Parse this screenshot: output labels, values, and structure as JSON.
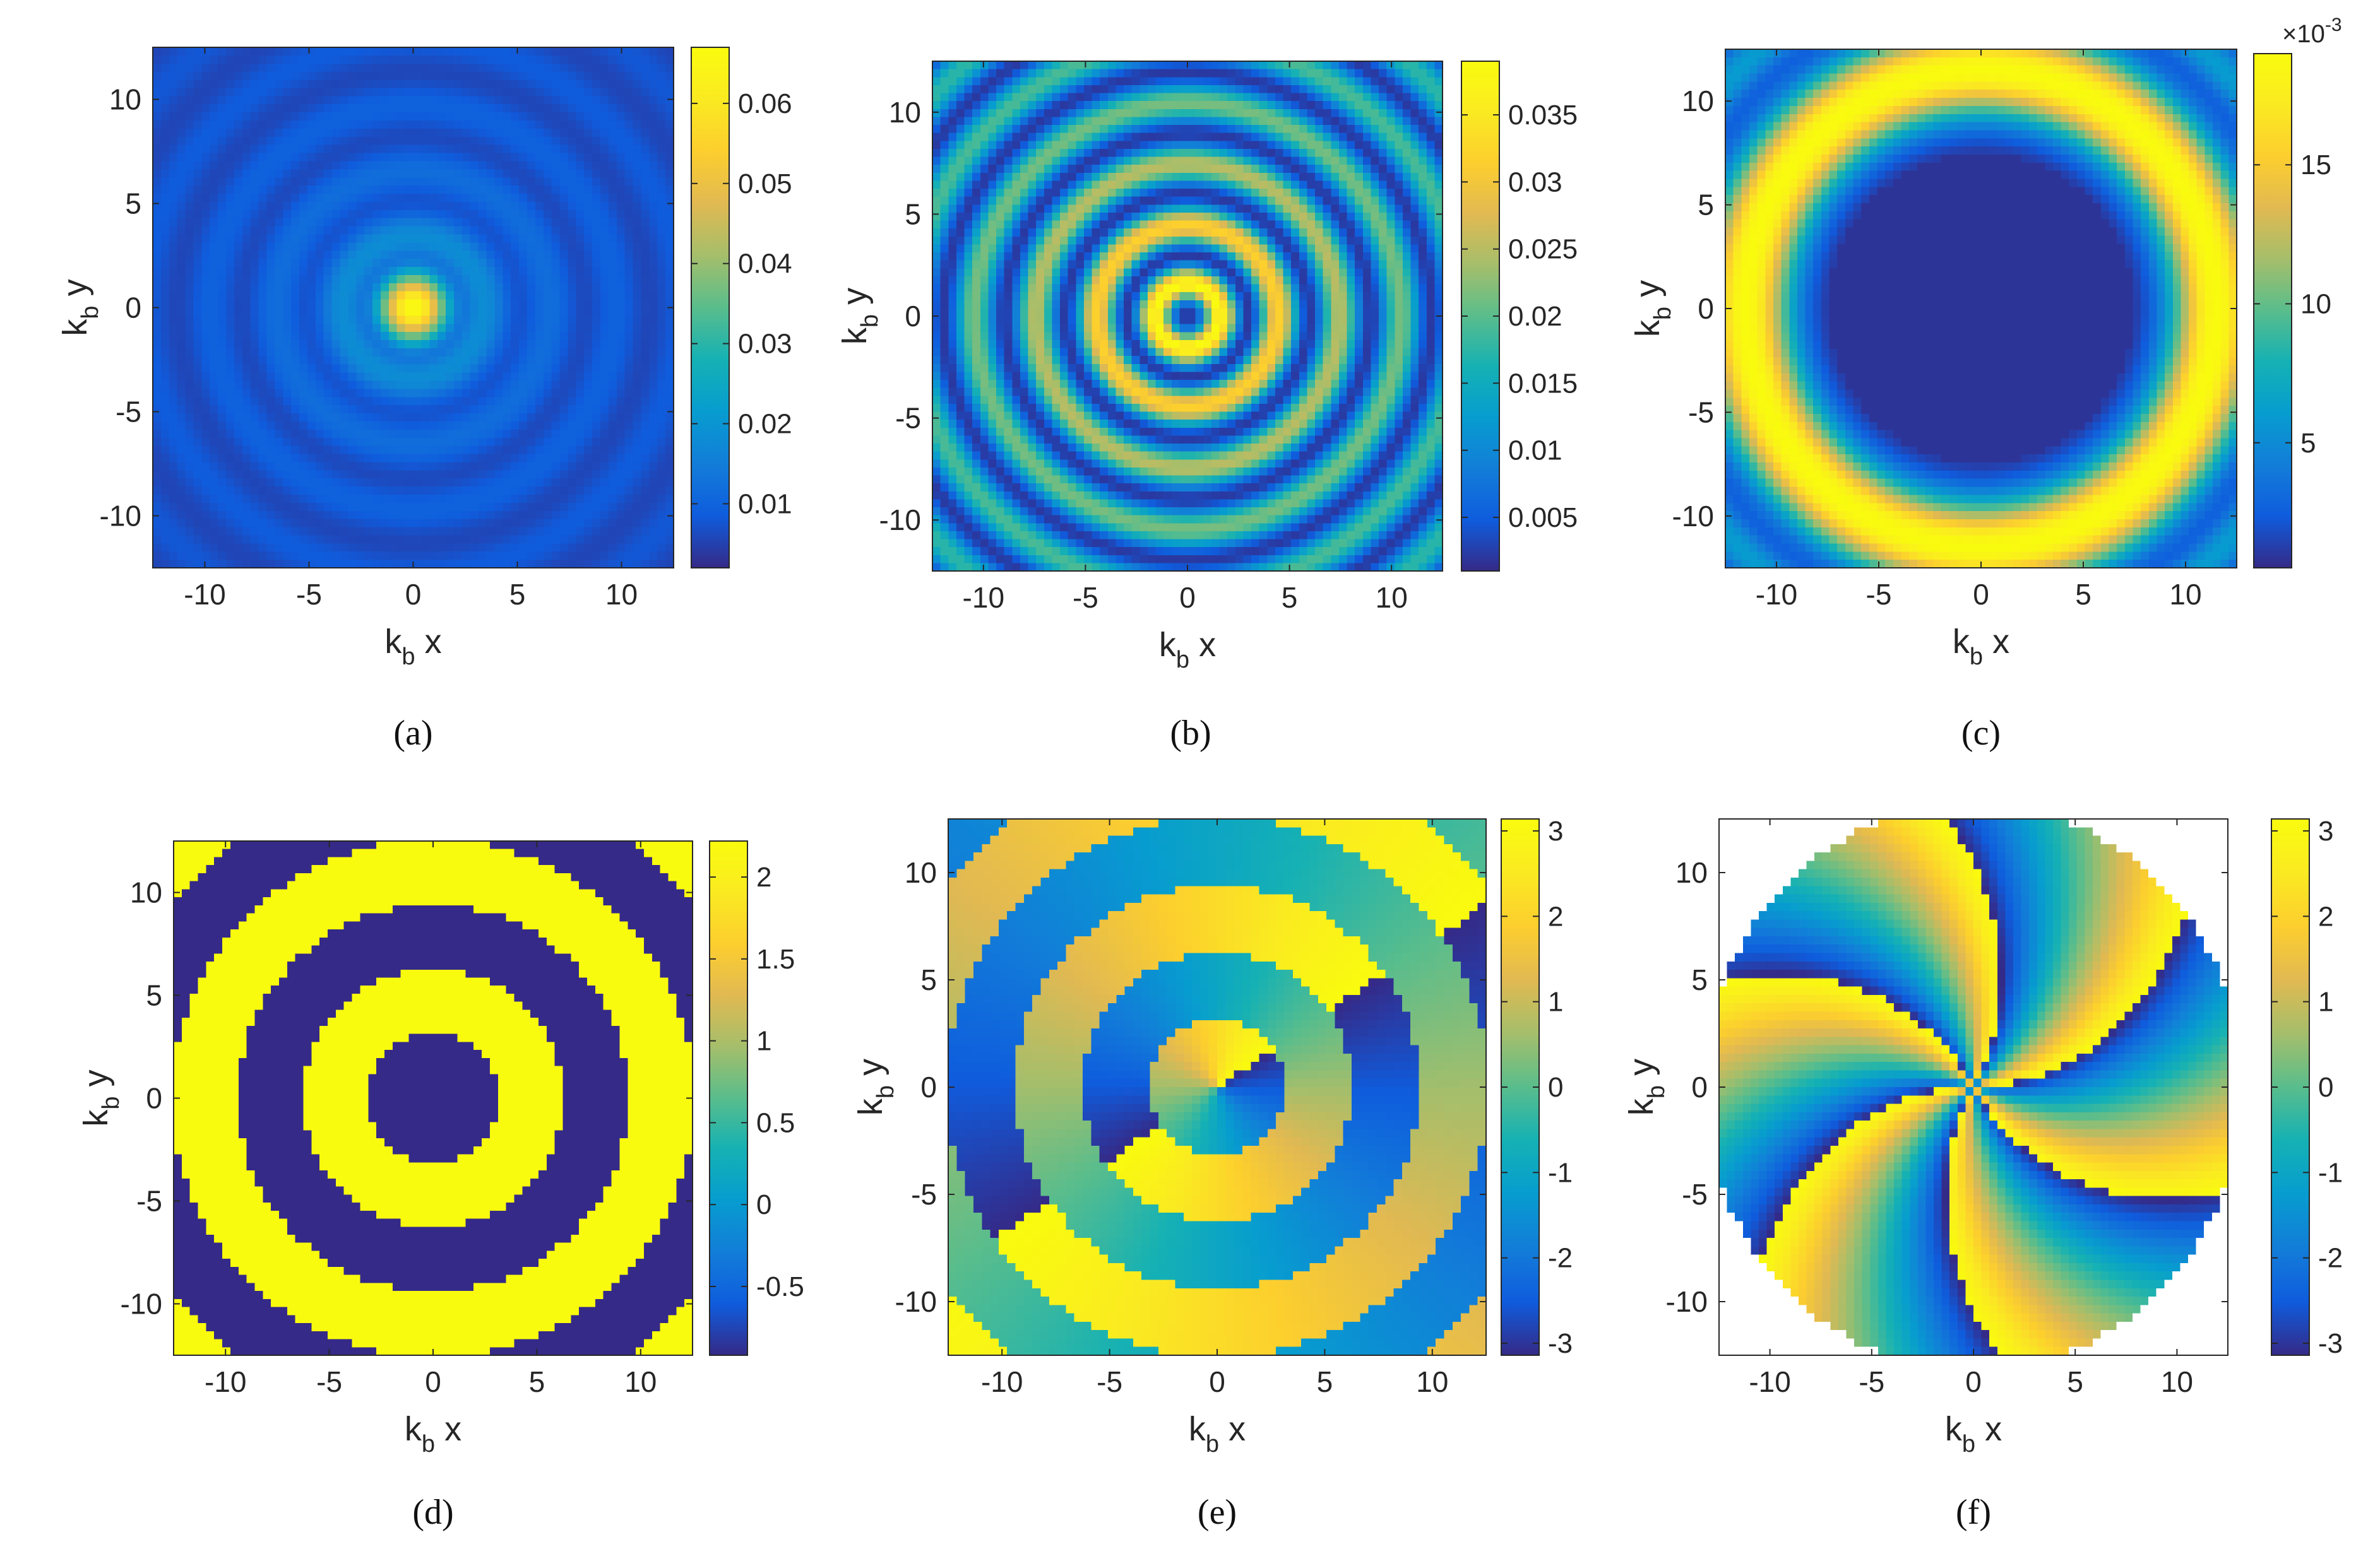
{
  "figure": {
    "panels": [
      {
        "id": "a",
        "caption": "(a)",
        "xlabel_main": "k",
        "xlabel_sub": "b",
        "xlabel_tail": " x",
        "ylabel_main": "k",
        "ylabel_sub": "b",
        "ylabel_tail": " y",
        "x_ticks": [
          "-10",
          "-5",
          "0",
          "5",
          "10"
        ],
        "y_ticks": [
          "10",
          "5",
          "0",
          "-5",
          "-10"
        ],
        "colorbar_ticks": [
          "0.06",
          "0.05",
          "0.04",
          "0.03",
          "0.02",
          "0.01"
        ],
        "colorbar_exponent": ""
      },
      {
        "id": "b",
        "caption": "(b)",
        "xlabel_main": "k",
        "xlabel_sub": "b",
        "xlabel_tail": " x",
        "ylabel_main": "k",
        "ylabel_sub": "b",
        "ylabel_tail": " y",
        "x_ticks": [
          "-10",
          "-5",
          "0",
          "5",
          "10"
        ],
        "y_ticks": [
          "10",
          "5",
          "0",
          "-5",
          "-10"
        ],
        "colorbar_ticks": [
          "0.035",
          "0.03",
          "0.025",
          "0.02",
          "0.015",
          "0.01",
          "0.005"
        ],
        "colorbar_exponent": ""
      },
      {
        "id": "c",
        "caption": "(c)",
        "xlabel_main": "k",
        "xlabel_sub": "b",
        "xlabel_tail": " x",
        "ylabel_main": "k",
        "ylabel_sub": "b",
        "ylabel_tail": " y",
        "x_ticks": [
          "-10",
          "-5",
          "0",
          "5",
          "10"
        ],
        "y_ticks": [
          "10",
          "5",
          "0",
          "-5",
          "-10"
        ],
        "colorbar_ticks": [
          "15",
          "10",
          "5"
        ],
        "colorbar_exponent": "×10",
        "colorbar_exponent_power": "-3"
      },
      {
        "id": "d",
        "caption": "(d)",
        "xlabel_main": "k",
        "xlabel_sub": "b",
        "xlabel_tail": " x",
        "ylabel_main": "k",
        "ylabel_sub": "b",
        "ylabel_tail": " y",
        "x_ticks": [
          "-10",
          "-5",
          "0",
          "5",
          "10"
        ],
        "y_ticks": [
          "10",
          "5",
          "0",
          "-5",
          "-10"
        ],
        "colorbar_ticks": [
          "2",
          "1.5",
          "1",
          "0.5",
          "0",
          "-0.5"
        ],
        "colorbar_exponent": ""
      },
      {
        "id": "e",
        "caption": "(e)",
        "xlabel_main": "k",
        "xlabel_sub": "b",
        "xlabel_tail": " x",
        "ylabel_main": "k",
        "ylabel_sub": "b",
        "ylabel_tail": " y",
        "x_ticks": [
          "-10",
          "-5",
          "0",
          "5",
          "10"
        ],
        "y_ticks": [
          "10",
          "5",
          "0",
          "-5",
          "-10"
        ],
        "colorbar_ticks": [
          "3",
          "2",
          "1",
          "0",
          "-1",
          "-2",
          "-3"
        ],
        "colorbar_exponent": ""
      },
      {
        "id": "f",
        "caption": "(f)",
        "xlabel_main": "k",
        "xlabel_sub": "b",
        "xlabel_tail": " x",
        "ylabel_main": "k",
        "ylabel_sub": "b",
        "ylabel_tail": " y",
        "x_ticks": [
          "-10",
          "-5",
          "0",
          "5",
          "10"
        ],
        "y_ticks": [
          "10",
          "5",
          "0",
          "-5",
          "-10"
        ],
        "colorbar_ticks": [
          "3",
          "2",
          "1",
          "0",
          "-1",
          "-2",
          "-3"
        ],
        "colorbar_exponent": ""
      }
    ]
  },
  "chart_data": [
    {
      "type": "heatmap",
      "panel": "a",
      "xlabel": "k_b x",
      "ylabel": "k_b y",
      "xlim": [
        -12.5,
        12.5
      ],
      "ylim": [
        -12.5,
        12.5
      ],
      "x_ticks": [
        -10,
        -5,
        0,
        5,
        10
      ],
      "y_ticks": [
        -10,
        -5,
        0,
        5,
        10
      ],
      "colormap": "parula",
      "color_range": [
        0.002,
        0.067
      ],
      "colorbar_ticks": [
        0.01,
        0.02,
        0.03,
        0.04,
        0.05,
        0.06
      ],
      "description_of_values": "radially symmetric concentric rings; peak ~0.065 at origin, ring maxima ~0.02-0.025, minima ~0.003"
    },
    {
      "type": "heatmap",
      "panel": "b",
      "xlabel": "k_b x",
      "ylabel": "k_b y",
      "xlim": [
        -12.5,
        12.5
      ],
      "ylim": [
        -12.5,
        12.5
      ],
      "x_ticks": [
        -10,
        -5,
        0,
        5,
        10
      ],
      "y_ticks": [
        -10,
        -5,
        0,
        5,
        10
      ],
      "colormap": "parula",
      "color_range": [
        0.001,
        0.039
      ],
      "colorbar_ticks": [
        0.005,
        0.01,
        0.015,
        0.02,
        0.025,
        0.03,
        0.035
      ],
      "description_of_values": "concentric rings with minimum at origin; first ring maximum ~0.037 near radius 1.5"
    },
    {
      "type": "heatmap",
      "panel": "c",
      "xlabel": "k_b x",
      "ylabel": "k_b y",
      "xlim": [
        -12.5,
        12.5
      ],
      "ylim": [
        -12.5,
        12.5
      ],
      "x_ticks": [
        -10,
        -5,
        0,
        5,
        10
      ],
      "y_ticks": [
        -10,
        -5,
        0,
        5,
        10
      ],
      "colormap": "parula",
      "color_range": [
        0.0005,
        0.019
      ],
      "colorbar_ticks": [
        0.005,
        0.01,
        0.015
      ],
      "colorbar_multiplier": "1e-3",
      "description_of_values": "near zero inside radius ~8, bright ring peaking ~0.019 near radius 11"
    },
    {
      "type": "heatmap",
      "panel": "d",
      "xlabel": "k_b x",
      "ylabel": "k_b y",
      "xlim": [
        -12.5,
        12.5
      ],
      "ylim": [
        -12.5,
        12.5
      ],
      "x_ticks": [
        -10,
        -5,
        0,
        5,
        10
      ],
      "y_ticks": [
        -10,
        -5,
        0,
        5,
        10
      ],
      "colormap": "parula",
      "color_range": [
        -0.92,
        2.22
      ],
      "colorbar_ticks": [
        -0.5,
        0,
        0.5,
        1,
        1.5,
        2
      ],
      "description_of_values": "binary concentric rings alternating between ~-0.92 and ~2.22"
    },
    {
      "type": "heatmap",
      "panel": "e",
      "xlabel": "k_b x",
      "ylabel": "k_b y",
      "xlim": [
        -12.5,
        12.5
      ],
      "ylim": [
        -12.5,
        12.5
      ],
      "x_ticks": [
        -10,
        -5,
        0,
        5,
        10
      ],
      "y_ticks": [
        -10,
        -5,
        0,
        5,
        10
      ],
      "colormap": "parula",
      "color_range": [
        -3.14,
        3.14
      ],
      "colorbar_ticks": [
        -3,
        -2,
        -1,
        0,
        1,
        2,
        3
      ],
      "description_of_values": "phase map: azimuthal phase wrapping, shifted by pi on alternating rings"
    },
    {
      "type": "heatmap",
      "panel": "f",
      "xlabel": "k_b x",
      "ylabel": "k_b y",
      "xlim": [
        -12.5,
        12.5
      ],
      "ylim": [
        -12.5,
        12.5
      ],
      "x_ticks": [
        -10,
        -5,
        0,
        5,
        10
      ],
      "y_ticks": [
        -10,
        -5,
        0,
        5,
        10
      ],
      "colormap": "parula",
      "color_range": [
        -3.14,
        3.14
      ],
      "colorbar_ticks": [
        -3,
        -2,
        -1,
        0,
        1,
        2,
        3
      ],
      "description_of_values": "phase map with ~12-fold angular wrapping (spokes) from origin; corners outside radius ~13 undefined"
    }
  ]
}
